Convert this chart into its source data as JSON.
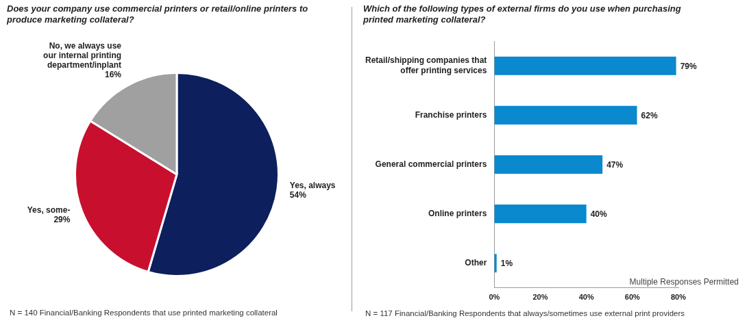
{
  "chart_data": [
    {
      "type": "pie",
      "title": "Does your company use commercial printers or retail/online printers to produce marketing collateral?",
      "categories": [
        "Yes, always",
        "Yes, some-",
        "No, we always use our internal printing department/inplant"
      ],
      "values": [
        54,
        29,
        16
      ],
      "colors": [
        "#0d1f5c",
        "#c8102e",
        "#a0a0a0"
      ],
      "value_labels": [
        "54%",
        "29%",
        "16%"
      ],
      "annotations": [
        "N = 140 Financial/Banking Respondents that use printed marketing collateral"
      ]
    },
    {
      "type": "bar",
      "orientation": "horizontal",
      "title": "Which of the following types of external firms do you use when purchasing printed marketing collateral?",
      "categories": [
        "Retail/shipping companies that offer printing services",
        "Franchise printers",
        "General commercial printers",
        "Online printers",
        "Other"
      ],
      "values": [
        79,
        62,
        47,
        40,
        1
      ],
      "color": "#0a89cf",
      "xlim": [
        0,
        80
      ],
      "xticks": [
        {
          "value": 0,
          "label": "0%"
        },
        {
          "value": 20,
          "label": "20%"
        },
        {
          "value": 40,
          "label": "40%"
        },
        {
          "value": 60,
          "label": "60%"
        },
        {
          "value": 80,
          "label": "80%"
        }
      ],
      "value_labels": [
        "79%",
        "62%",
        "47%",
        "40%",
        "1%"
      ],
      "annotations": [
        "Multiple Responses Permitted",
        "N = 117 Financial/Banking Respondents that always/sometimes use external print providers"
      ]
    }
  ]
}
